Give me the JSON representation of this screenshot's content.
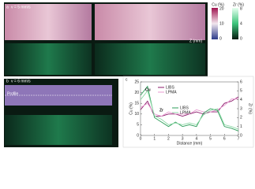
{
  "panel_a": {
    "label": "a",
    "speed": "v = 5 mm/s",
    "axis_label": "Z (mm)",
    "colorbars": [
      {
        "title": "Cu (%)",
        "ticks": [
          "20",
          "10",
          "0"
        ]
      },
      {
        "title": "Zr (%)",
        "ticks": [
          "8",
          "4",
          "0"
        ]
      }
    ]
  },
  "panel_b": {
    "label": "b",
    "speed": "v = 6 mm/s",
    "profile_label": "Profile"
  },
  "chart_data": {
    "type": "line",
    "panel_label": "c",
    "x": [
      0,
      0.5,
      1,
      1.5,
      2,
      2.5,
      3,
      3.5,
      4,
      4.5,
      5,
      5.5,
      6,
      6.5,
      7
    ],
    "series": [
      {
        "name": "LIBS",
        "color": "#8b1a6b",
        "values": [
          12,
          16,
          9,
          9,
          10,
          10,
          9,
          10,
          11,
          10,
          11,
          11,
          15,
          16,
          18
        ]
      },
      {
        "name": "LPMA",
        "color": "#e89ad0",
        "values": [
          13,
          15,
          10,
          9,
          11,
          10,
          10,
          10,
          12,
          11,
          11,
          12,
          14,
          17,
          17
        ]
      },
      {
        "name": "LIBS",
        "color": "#2e9e5a",
        "axis": "y2",
        "values": [
          4.5,
          5.5,
          2,
          1.5,
          1,
          1.5,
          1,
          1.2,
          1,
          2.5,
          3,
          2.8,
          1,
          0.8,
          0.5
        ]
      },
      {
        "name": "LPMA",
        "color": "#8fd9a8",
        "axis": "y2",
        "values": [
          4,
          5,
          2.2,
          1.8,
          1.2,
          1.4,
          1.2,
          1.4,
          1.2,
          2.3,
          2.8,
          3,
          1.2,
          1,
          0.7
        ]
      }
    ],
    "annotations": [
      "Cu",
      "Zr"
    ],
    "xlim": [
      0,
      7
    ],
    "xticks": [
      0,
      1,
      2,
      3,
      4,
      5,
      6,
      7
    ],
    "ylim": [
      0,
      25
    ],
    "yticks": [
      0,
      5,
      10,
      15,
      20,
      25
    ],
    "y2lim": [
      0,
      6
    ],
    "y2ticks": [
      0,
      1,
      2,
      3,
      4,
      5,
      6
    ],
    "x_label": "Distance (mm)",
    "y_label": "Cu (%)",
    "y2_label": "Zr (%)"
  }
}
